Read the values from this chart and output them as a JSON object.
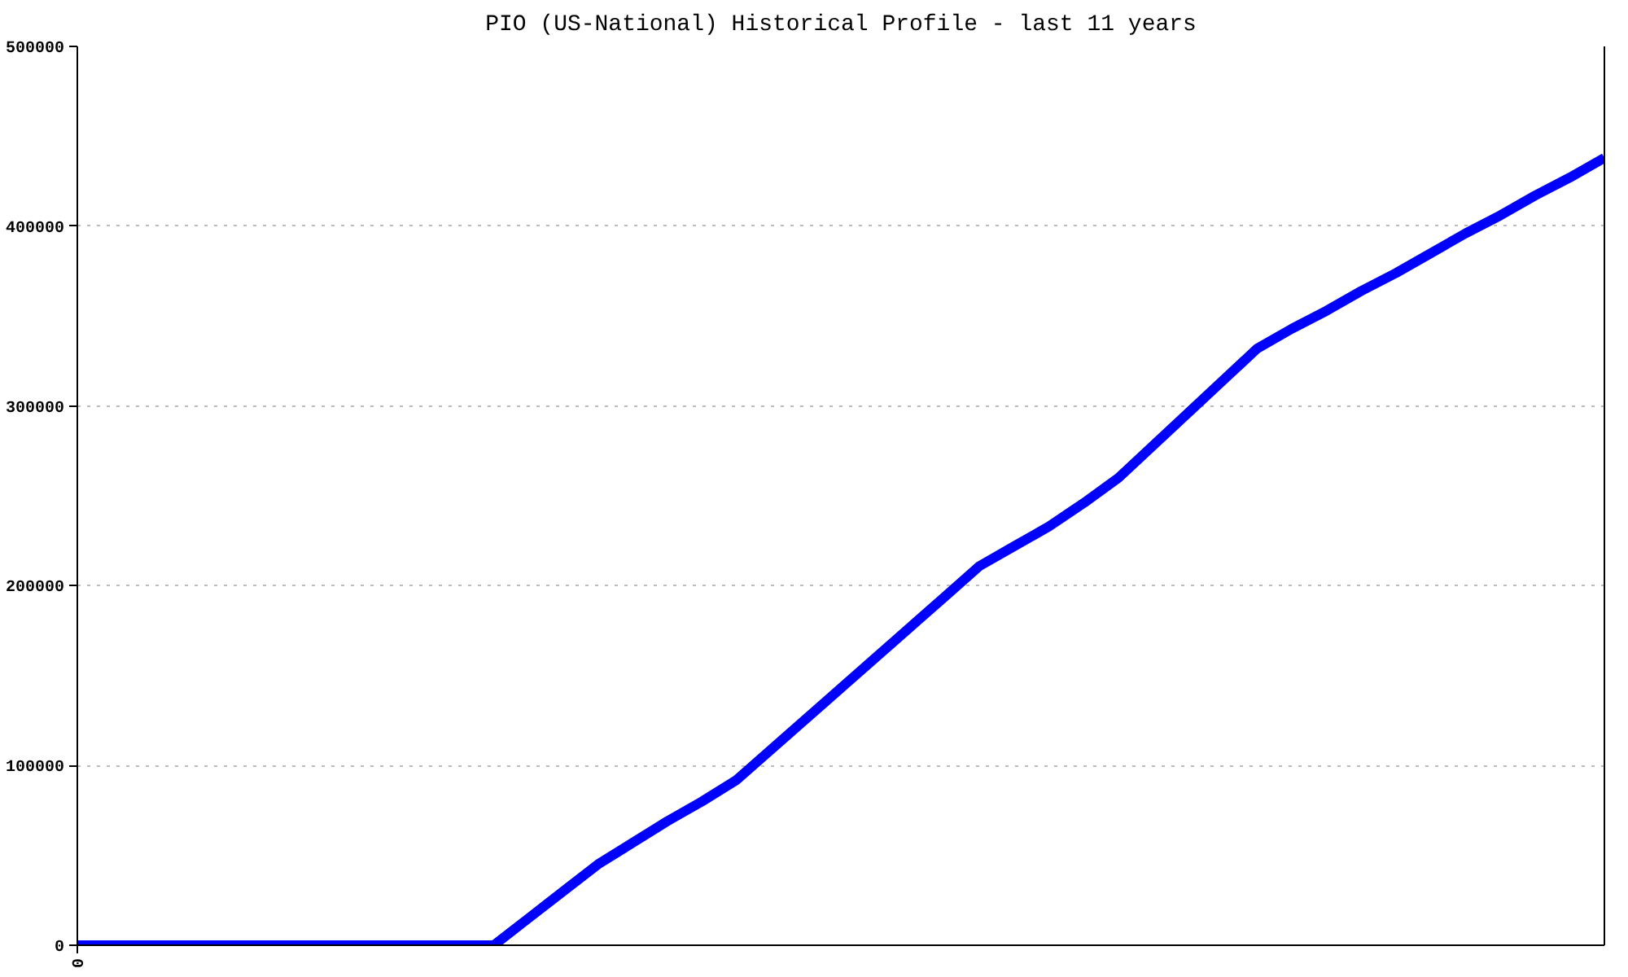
{
  "chart_data": {
    "type": "line",
    "title": "PIO (US-National) Historical Profile - last 11 years",
    "categories": [
      "0",
      null,
      null,
      null,
      null,
      null,
      null,
      null,
      null,
      null,
      null,
      null,
      null,
      null,
      null,
      null,
      null,
      null,
      null,
      null,
      null,
      null,
      null,
      null,
      null,
      null,
      null,
      null,
      null,
      null,
      null,
      null,
      null,
      null,
      null,
      null,
      null,
      null,
      null,
      null,
      null,
      null,
      null,
      null,
      null
    ],
    "series": [
      {
        "color": "#0000ff",
        "values": [
          0,
          0,
          0,
          0,
          0,
          0,
          0,
          0,
          0,
          0,
          0,
          0,
          0,
          15000,
          30000,
          45000,
          57000,
          69000,
          80000,
          92000,
          109000,
          126000,
          143000,
          160000,
          177000,
          194000,
          211000,
          222000,
          233000,
          246000,
          260000,
          278000,
          296000,
          314000,
          332000,
          343000,
          353000,
          364000,
          374000,
          385000,
          396000,
          406000,
          417000,
          427000,
          438000
        ]
      }
    ],
    "ylim": [
      0,
      500000
    ],
    "yticks": [
      0,
      100000,
      200000,
      300000,
      400000,
      500000
    ],
    "grid": "y"
  }
}
